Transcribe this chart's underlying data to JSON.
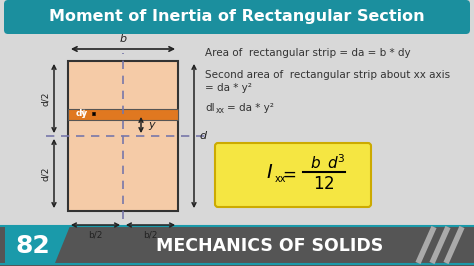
{
  "title": "Moment of Inertia of Rectangular Section",
  "title_bg_top": "#1a9aaa",
  "title_bg_bot": "#0d6e7a",
  "title_color": "#ffffff",
  "bg_color": "#d8d8d8",
  "rect_fill": "#f5cba7",
  "strip_fill": "#e07820",
  "dashed_color": "#7777aa",
  "text1": "Area of  rectangular strip = da = b * dy",
  "text2_line1": "Second area of  rectangular strip about xx axis",
  "text2_line2": "= da * y²",
  "text3_pre": "dI",
  "text3_sub": "xx",
  "text3_post": "= da * y²",
  "formula_bg": "#f5e642",
  "footer_dark": "#666666",
  "footer_teal": "#1a9aaa",
  "footer_num": "82",
  "footer_text": "MECHANICS OF SOLIDS",
  "arr_color": "#222222",
  "text_color": "#333333"
}
